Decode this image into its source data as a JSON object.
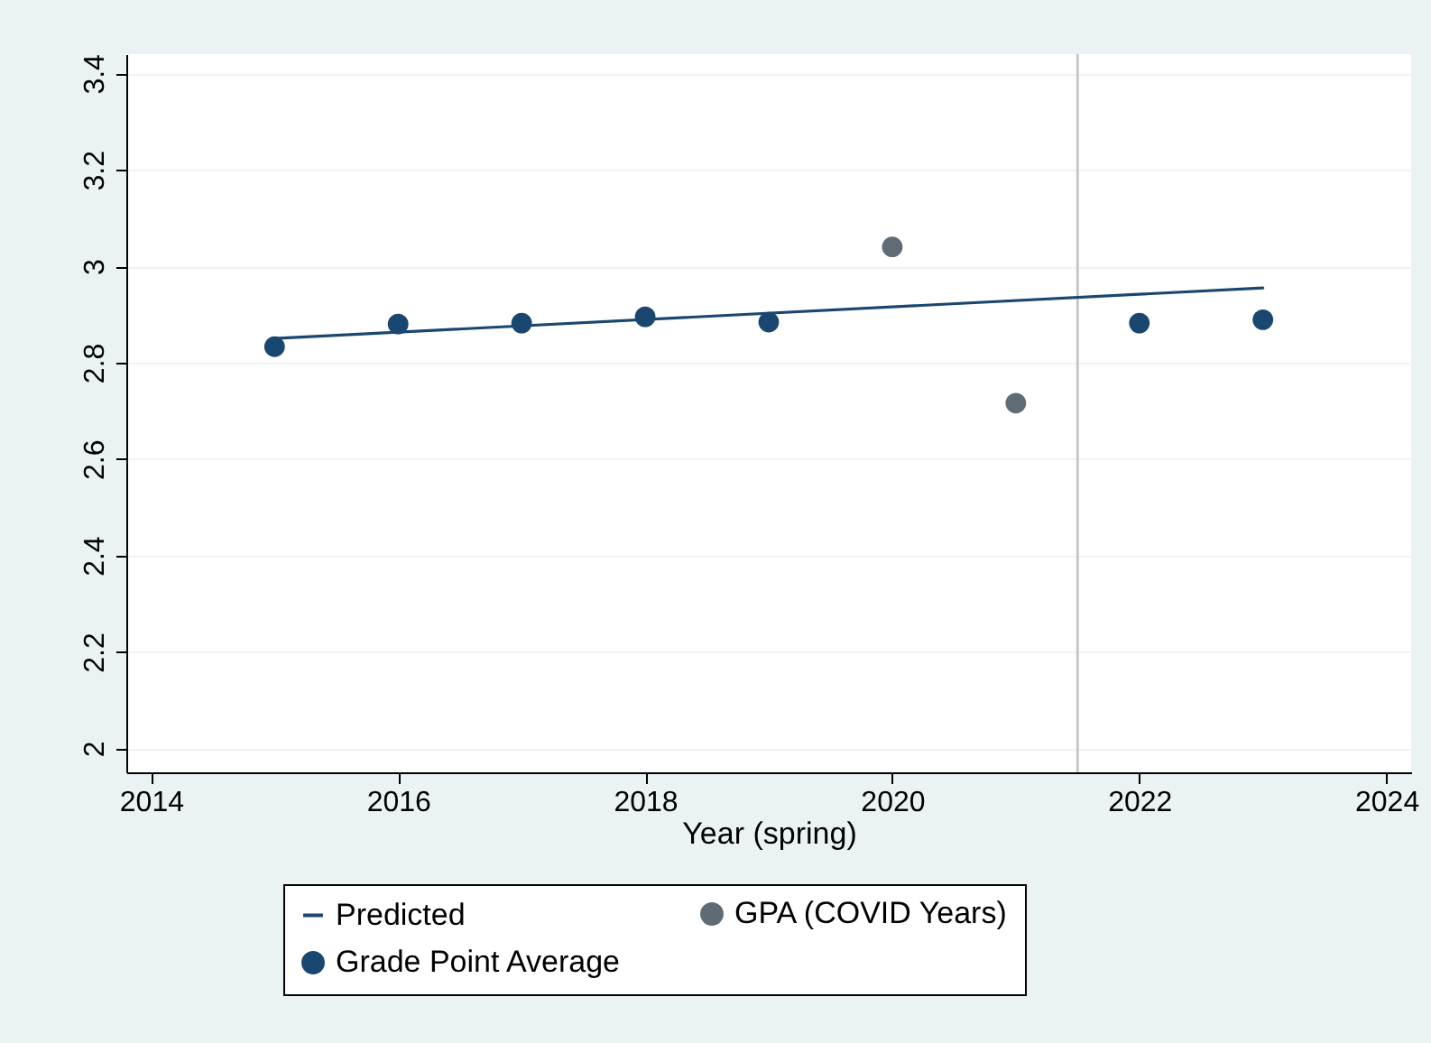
{
  "chart_data": {
    "type": "scatter",
    "xlabel": "Year (spring)",
    "xlim": [
      2013.8,
      2024.2
    ],
    "xticks": [
      2014,
      2016,
      2018,
      2020,
      2022,
      2024
    ],
    "ylim": [
      1.95,
      3.44
    ],
    "yticks": [
      2,
      2.2,
      2.4,
      2.6,
      2.8,
      3,
      3.2,
      3.4
    ],
    "grid": "y",
    "legend": "bottom",
    "marker": "circle",
    "ref_lines": [
      {
        "axis": "x",
        "value": 2021.5,
        "color": "#c8c8c8"
      }
    ],
    "series": [
      {
        "name": "Predicted",
        "type": "line",
        "marker": "none",
        "color": "#1a476f",
        "x": [
          2015,
          2023
        ],
        "values": [
          2.85,
          2.955
        ]
      },
      {
        "name": "Grade Point Average",
        "color": "#1a476f",
        "x": [
          2015,
          2016,
          2017,
          2018,
          2019,
          2022,
          2023
        ],
        "values": [
          2.833,
          2.88,
          2.882,
          2.895,
          2.884,
          2.882,
          2.889
        ]
      },
      {
        "name": "GPA (COVID Years)",
        "color": "#5f6b75",
        "x": [
          2020,
          2021
        ],
        "values": [
          3.04,
          2.716
        ]
      }
    ]
  }
}
